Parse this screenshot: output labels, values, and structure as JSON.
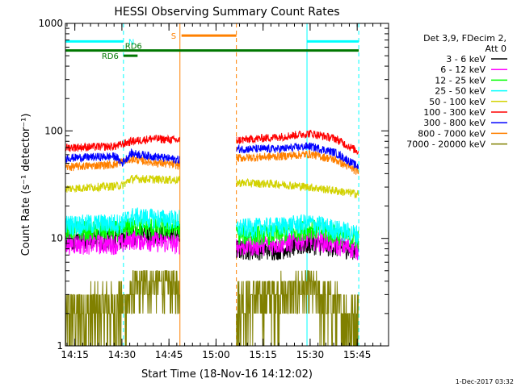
{
  "chart_data": {
    "type": "line",
    "title": "HESSI Observing Summary Count Rates",
    "xlabel": "Start Time (18-Nov-16 14:12:02)",
    "ylabel": "Count Rate (s⁻¹ detector⁻¹)",
    "y_scale": "log",
    "ylim": [
      1,
      1000
    ],
    "x_start": "14:12:02",
    "xlim": [
      "14:12",
      "15:55"
    ],
    "x_ticks": [
      "14:15",
      "14:30",
      "14:45",
      "15:00",
      "15:15",
      "15:30",
      "15:45"
    ],
    "y_ticks": [
      "1",
      "10",
      "100",
      "1000"
    ],
    "timestamp": "1-Dec-2017 03:32",
    "legend": {
      "placement": "right",
      "header_line1": "Det 3,9, FDecim 2,",
      "header_line2": "Att 0",
      "entries": [
        {
          "label": "3 - 6 keV",
          "color": "#000000"
        },
        {
          "label": "6 - 12 keV",
          "color": "#ff00ff"
        },
        {
          "label": "12 - 25 keV",
          "color": "#00ff00"
        },
        {
          "label": "25 - 50 keV",
          "color": "#00ffff"
        },
        {
          "label": "50 - 100 keV",
          "color": "#d2d200"
        },
        {
          "label": "100 - 300 keV",
          "color": "#ff0000"
        },
        {
          "label": "300 - 800 keV",
          "color": "#0000ff"
        },
        {
          "label": "800 - 7000 keV",
          "color": "#ff8000"
        },
        {
          "label": "7000 - 20000 keV",
          "color": "#808000"
        }
      ]
    },
    "flags": [
      {
        "label": "N",
        "color": "#00ffff",
        "level": 680,
        "intervals": [
          [
            "14:12",
            "14:30.5"
          ],
          [
            "15:29",
            "15:45.5"
          ]
        ]
      },
      {
        "label": "RD6",
        "color": "#007700",
        "level": 560,
        "intervals": [
          [
            "14:12",
            "15:45.5"
          ]
        ]
      },
      {
        "label": "S",
        "color": "#ff8000",
        "level": 770,
        "intervals": [
          [
            "14:49",
            "15:06.5"
          ]
        ]
      },
      {
        "label": "RD6",
        "color": "#007700",
        "level": 500,
        "intervals": [
          [
            "14:30.5",
            "14:35"
          ]
        ]
      }
    ],
    "vlines": [
      {
        "time": "14:12",
        "color": "#00ffff",
        "style": "solid"
      },
      {
        "time": "14:30.5",
        "color": "#00ffff",
        "style": "dashed"
      },
      {
        "time": "14:48.5",
        "color": "#ff8000",
        "style": "solid"
      },
      {
        "time": "15:06.5",
        "color": "#ff8000",
        "style": "dashed"
      },
      {
        "time": "15:29",
        "color": "#00ffff",
        "style": "solid"
      },
      {
        "time": "15:45.5",
        "color": "#00ffff",
        "style": "dashed"
      }
    ],
    "segments": [
      {
        "start": "14:12",
        "end": "14:48.5"
      },
      {
        "start": "15:06.5",
        "end": "15:45.5"
      }
    ],
    "series": [
      {
        "name": "3 - 6 keV",
        "color": "#000000",
        "points": [
          [
            "14:12",
            10
          ],
          [
            "14:30",
            10
          ],
          [
            "14:33",
            11
          ],
          [
            "14:48",
            11
          ],
          [
            "15:07",
            8
          ],
          [
            "15:20",
            8
          ],
          [
            "15:30",
            9
          ],
          [
            "15:45",
            8
          ]
        ]
      },
      {
        "name": "6 - 12 keV",
        "color": "#ff00ff",
        "points": [
          [
            "14:12",
            9
          ],
          [
            "14:30",
            9
          ],
          [
            "14:33",
            10
          ],
          [
            "14:48",
            9
          ],
          [
            "15:07",
            8.5
          ],
          [
            "15:20",
            9
          ],
          [
            "15:30",
            10
          ],
          [
            "15:45",
            8
          ]
        ]
      },
      {
        "name": "12 - 25 keV",
        "color": "#00ff00",
        "points": [
          [
            "14:12",
            12
          ],
          [
            "14:30",
            12
          ],
          [
            "14:33",
            13
          ],
          [
            "14:48",
            12.5
          ],
          [
            "15:07",
            11
          ],
          [
            "15:20",
            11
          ],
          [
            "15:30",
            12.5
          ],
          [
            "15:45",
            10
          ]
        ]
      },
      {
        "name": "25 - 50 keV",
        "color": "#00ffff",
        "points": [
          [
            "14:12",
            13.5
          ],
          [
            "14:30",
            14
          ],
          [
            "14:33",
            16
          ],
          [
            "14:48",
            15
          ],
          [
            "15:07",
            12.5
          ],
          [
            "15:20",
            13
          ],
          [
            "15:30",
            14
          ],
          [
            "15:45",
            11
          ]
        ]
      },
      {
        "name": "50 - 100 keV",
        "color": "#d2d200",
        "points": [
          [
            "14:12",
            29
          ],
          [
            "14:30",
            31
          ],
          [
            "14:33",
            36
          ],
          [
            "14:48",
            35
          ],
          [
            "15:07",
            33
          ],
          [
            "15:20",
            32
          ],
          [
            "15:30",
            30
          ],
          [
            "15:45",
            26
          ]
        ]
      },
      {
        "name": "100 - 300 keV",
        "color": "#ff0000",
        "points": [
          [
            "14:12",
            70
          ],
          [
            "14:28",
            72
          ],
          [
            "14:30",
            75
          ],
          [
            "14:33",
            80
          ],
          [
            "14:40",
            85
          ],
          [
            "14:48",
            82
          ],
          [
            "15:07",
            82
          ],
          [
            "15:20",
            88
          ],
          [
            "15:30",
            95
          ],
          [
            "15:38",
            85
          ],
          [
            "15:45",
            65
          ]
        ]
      },
      {
        "name": "300 - 800 keV",
        "color": "#0000ff",
        "points": [
          [
            "14:12",
            56
          ],
          [
            "14:28",
            58
          ],
          [
            "14:30",
            50
          ],
          [
            "14:33",
            62
          ],
          [
            "14:40",
            58
          ],
          [
            "14:48",
            54
          ],
          [
            "15:07",
            68
          ],
          [
            "15:20",
            68
          ],
          [
            "15:30",
            72
          ],
          [
            "15:38",
            63
          ],
          [
            "15:45",
            47
          ]
        ]
      },
      {
        "name": "800 - 7000 keV",
        "color": "#ff8000",
        "points": [
          [
            "14:12",
            46
          ],
          [
            "14:28",
            49
          ],
          [
            "14:30",
            52
          ],
          [
            "14:33",
            55
          ],
          [
            "14:40",
            51
          ],
          [
            "14:48",
            48
          ],
          [
            "15:07",
            56
          ],
          [
            "15:20",
            58
          ],
          [
            "15:30",
            61
          ],
          [
            "15:38",
            54
          ],
          [
            "15:45",
            42
          ]
        ]
      },
      {
        "name": "7000 - 20000 keV",
        "color": "#808000",
        "points": [
          [
            "14:12",
            1.9
          ],
          [
            "14:30",
            2.3
          ],
          [
            "14:33",
            3.2
          ],
          [
            "14:40",
            4.0
          ],
          [
            "14:48",
            3.5
          ],
          [
            "15:07",
            2.6
          ],
          [
            "15:20",
            3.0
          ],
          [
            "15:30",
            3.4
          ],
          [
            "15:38",
            2.2
          ],
          [
            "15:45",
            1.7
          ]
        ]
      }
    ]
  }
}
